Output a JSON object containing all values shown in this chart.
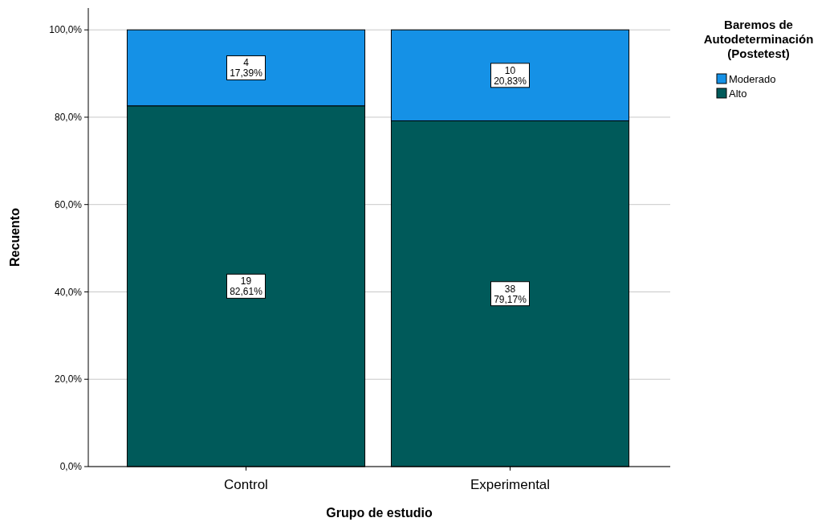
{
  "chart_data": {
    "type": "bar",
    "stacked": true,
    "xlabel": "Grupo de estudio",
    "ylabel": "Recuento",
    "legend_title": "Baremos de Autodeterminación (Postetest)",
    "legend": "right",
    "grid": "y",
    "categories": [
      "Control",
      "Experimental"
    ],
    "ylim": [
      0,
      105
    ],
    "yticks": [
      {
        "value": 0,
        "label": "0,0%"
      },
      {
        "value": 20,
        "label": "20,0%"
      },
      {
        "value": 40,
        "label": "40,0%"
      },
      {
        "value": 60,
        "label": "60,0%"
      },
      {
        "value": 80,
        "label": "80,0%"
      },
      {
        "value": 100,
        "label": "100,0%"
      }
    ],
    "series": [
      {
        "name": "Alto",
        "color": "#005a5a",
        "values": [
          82.61,
          79.17
        ],
        "value_labels": [
          "19\n82,61%",
          "38\n79,17%"
        ]
      },
      {
        "name": "Moderado",
        "color": "#1591e6",
        "values": [
          17.39,
          20.83
        ],
        "value_labels": [
          "4\n17,39%",
          "10\n20,83%"
        ]
      }
    ]
  }
}
